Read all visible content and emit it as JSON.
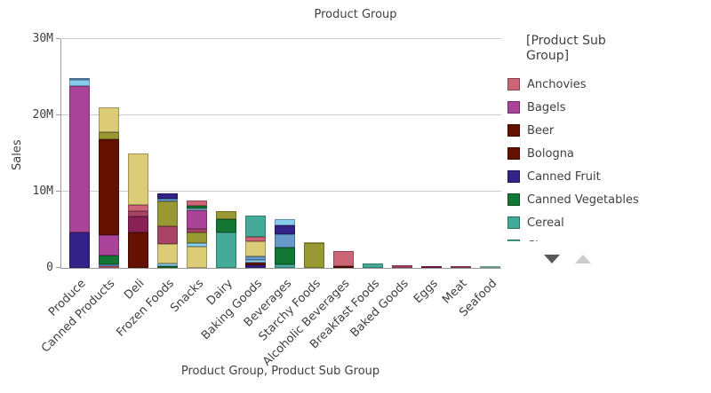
{
  "title": "Product Group",
  "y_axis": {
    "label": "Sales"
  },
  "x_axis": {
    "title": "Product Group,  Product Sub Group"
  },
  "legend": {
    "title": "[Product Sub Group]",
    "items": [
      {
        "label": "Anchovies",
        "color": "rose"
      },
      {
        "label": "Bagels",
        "color": "magenta"
      },
      {
        "label": "Beer",
        "color": "darkred"
      },
      {
        "label": "Bologna",
        "color": "darkred"
      },
      {
        "label": "Canned Fruit",
        "color": "indigo"
      },
      {
        "label": "Canned Vegetables",
        "color": "green"
      },
      {
        "label": "Cereal",
        "color": "teal"
      },
      {
        "label": "Cheese",
        "color": "teal"
      }
    ],
    "scroll_down_icon": "chevron-down",
    "scroll_up_icon": "chevron-up"
  },
  "chart_data": {
    "type": "bar",
    "stacked": true,
    "title": "Product Group",
    "xlabel": "Product Group,  Product Sub Group",
    "ylabel": "Sales",
    "units": "millions",
    "ylim": [
      0,
      30000000
    ],
    "grid": true,
    "legend_position": "right",
    "yticks": [
      {
        "value": 0,
        "label": "0"
      },
      {
        "value": 10,
        "label": "10M"
      },
      {
        "value": 20,
        "label": "20M"
      },
      {
        "value": 30,
        "label": "30M"
      }
    ],
    "palette": {
      "indigo": "#332288",
      "blue": "#6699CC",
      "lightblue": "#88CCEE",
      "teal": "#44AA99",
      "paleteal": "#99CCBB",
      "green": "#117733",
      "olive": "#999933",
      "khaki": "#DDCC77",
      "darkred": "#661100",
      "rose": "#CC6677",
      "darkrose": "#AA4466",
      "wine": "#882255",
      "magenta": "#AA4499"
    },
    "categories": [
      "Produce",
      "Canned Products",
      "Deli",
      "Frozen Foods",
      "Snacks",
      "Dairy",
      "Baking Goods",
      "Beverages",
      "Starchy Foods",
      "Alcoholic Beverages",
      "Breakfast Foods",
      "Baked Goods",
      "Eggs",
      "Meat",
      "Seafood"
    ],
    "bars": [
      {
        "category": "Produce",
        "total_M": 24.9,
        "segments": [
          [
            "indigo",
            4.7
          ],
          [
            "magenta",
            19.1
          ],
          [
            "lightblue",
            0.8
          ],
          [
            "blue",
            0.3
          ]
        ]
      },
      {
        "category": "Canned Products",
        "total_M": 21.1,
        "segments": [
          [
            "rose",
            0.25
          ],
          [
            "blue",
            0.25
          ],
          [
            "green",
            1.1
          ],
          [
            "magenta",
            2.7
          ],
          [
            "darkred",
            12.6
          ],
          [
            "olive",
            0.9
          ],
          [
            "khaki",
            3.3
          ]
        ]
      },
      {
        "category": "Deli",
        "total_M": 15.0,
        "segments": [
          [
            "darkred",
            4.7
          ],
          [
            "wine",
            2.0
          ],
          [
            "darkrose",
            0.8
          ],
          [
            "rose",
            0.8
          ],
          [
            "khaki",
            6.7
          ]
        ]
      },
      {
        "category": "Frozen Foods",
        "total_M": 9.8,
        "segments": [
          [
            "green",
            0.25
          ],
          [
            "lightblue",
            0.35
          ],
          [
            "khaki",
            2.5
          ],
          [
            "darkrose",
            2.4
          ],
          [
            "olive",
            3.2
          ],
          [
            "blue",
            0.4
          ],
          [
            "indigo",
            0.7
          ]
        ]
      },
      {
        "category": "Snacks",
        "total_M": 8.8,
        "segments": [
          [
            "khaki",
            2.8
          ],
          [
            "lightblue",
            0.5
          ],
          [
            "olive",
            1.4
          ],
          [
            "darkrose",
            0.4
          ],
          [
            "magenta",
            2.5
          ],
          [
            "lightblue",
            0.2
          ],
          [
            "green",
            0.3
          ],
          [
            "rose",
            0.7
          ]
        ]
      },
      {
        "category": "Dairy",
        "total_M": 7.5,
        "segments": [
          [
            "teal",
            4.7
          ],
          [
            "green",
            1.7
          ],
          [
            "olive",
            1.1
          ]
        ]
      },
      {
        "category": "Baking Goods",
        "total_M": 6.9,
        "segments": [
          [
            "indigo",
            0.35
          ],
          [
            "darkred",
            0.35
          ],
          [
            "lightblue",
            0.35
          ],
          [
            "blue",
            0.45
          ],
          [
            "khaki",
            2.0
          ],
          [
            "rose",
            0.6
          ],
          [
            "teal",
            2.8
          ]
        ]
      },
      {
        "category": "Beverages",
        "total_M": 6.4,
        "segments": [
          [
            "teal",
            0.45
          ],
          [
            "green",
            2.2
          ],
          [
            "blue",
            1.75
          ],
          [
            "indigo",
            1.15
          ],
          [
            "lightblue",
            0.85
          ]
        ]
      },
      {
        "category": "Starchy Foods",
        "total_M": 3.4,
        "segments": [
          [
            "olive",
            3.2
          ],
          [
            "khaki",
            0.2
          ]
        ]
      },
      {
        "category": "Alcoholic Beverages",
        "total_M": 2.2,
        "segments": [
          [
            "darkred",
            0.2
          ],
          [
            "rose",
            2.0
          ]
        ]
      },
      {
        "category": "Breakfast Foods",
        "total_M": 0.55,
        "segments": [
          [
            "teal",
            0.55
          ]
        ]
      },
      {
        "category": "Baked Goods",
        "total_M": 0.4,
        "segments": [
          [
            "darkrose",
            0.4
          ]
        ]
      },
      {
        "category": "Eggs",
        "total_M": 0.25,
        "segments": [
          [
            "wine",
            0.25
          ]
        ]
      },
      {
        "category": "Meat",
        "total_M": 0.12,
        "segments": [
          [
            "darkrose",
            0.12
          ]
        ]
      },
      {
        "category": "Seafood",
        "total_M": 0.1,
        "segments": [
          [
            "paleteal",
            0.1
          ]
        ]
      }
    ]
  }
}
